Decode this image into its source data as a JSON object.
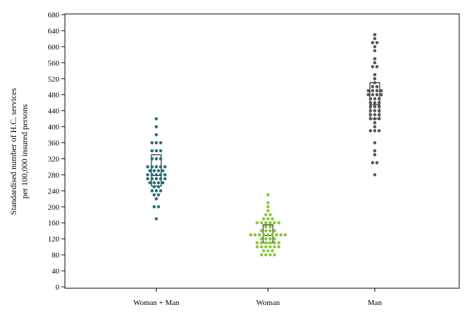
{
  "chart_data": {
    "type": "scatter",
    "subtype": "dot-strip with interquartile box",
    "ylabel_lines": [
      "Standardised number of H.C. services",
      "per 100,000 insured persons"
    ],
    "ylim": [
      0,
      680
    ],
    "yticks": [
      0,
      40,
      80,
      120,
      160,
      200,
      240,
      280,
      320,
      360,
      400,
      440,
      480,
      520,
      560,
      600,
      640,
      680
    ],
    "grid": false,
    "categories": [
      "Woman + Man",
      "Woman",
      "Man"
    ],
    "series": [
      {
        "category": "Woman + Man",
        "color": "#2a6f7a",
        "box": {
          "q1": 252,
          "median": 278,
          "q3": 330
        },
        "values": [
          420,
          400,
          380,
          360,
          360,
          360,
          340,
          340,
          340,
          320,
          320,
          320,
          300,
          300,
          300,
          300,
          300,
          290,
          290,
          290,
          290,
          280,
          280,
          280,
          280,
          280,
          270,
          270,
          270,
          270,
          270,
          260,
          260,
          260,
          260,
          250,
          250,
          240,
          240,
          240,
          230,
          230,
          220,
          200,
          200,
          170
        ]
      },
      {
        "category": "Woman",
        "color": "#8cc63f",
        "box": {
          "q1": 110,
          "median": 128,
          "q3": 155
        },
        "values": [
          230,
          210,
          200,
          190,
          180,
          180,
          170,
          170,
          170,
          160,
          160,
          160,
          160,
          160,
          160,
          150,
          150,
          140,
          140,
          140,
          140,
          130,
          130,
          130,
          130,
          130,
          130,
          130,
          130,
          130,
          120,
          120,
          120,
          120,
          110,
          110,
          110,
          110,
          110,
          110,
          100,
          100,
          100,
          100,
          100,
          100,
          90,
          90,
          90,
          80,
          80,
          80,
          80
        ]
      },
      {
        "category": "Man",
        "color": "#555555",
        "box": {
          "q1": 420,
          "median": 455,
          "q3": 510
        },
        "values": [
          630,
          620,
          610,
          610,
          600,
          590,
          570,
          560,
          550,
          550,
          530,
          520,
          510,
          500,
          500,
          490,
          490,
          490,
          490,
          480,
          480,
          480,
          480,
          470,
          470,
          470,
          460,
          460,
          460,
          450,
          450,
          450,
          440,
          440,
          440,
          430,
          430,
          430,
          420,
          420,
          420,
          410,
          400,
          390,
          390,
          390,
          360,
          340,
          330,
          310,
          310,
          280
        ]
      }
    ]
  }
}
